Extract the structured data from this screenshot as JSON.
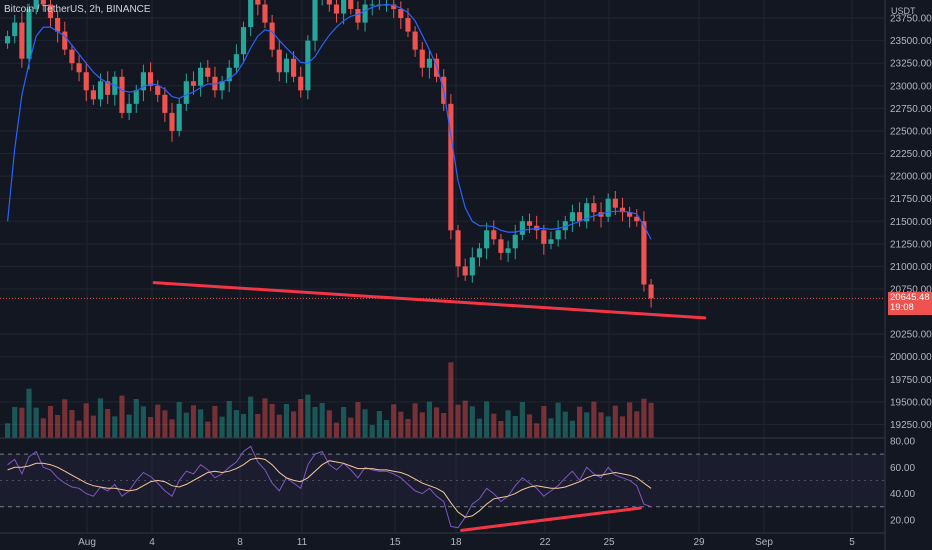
{
  "header": {
    "symbol": "Bitcoin / TetherUS",
    "interval": "2h",
    "exchange": "BINANCE"
  },
  "price_axis": {
    "unit": "USDT",
    "ticks": [
      "23750.00",
      "23500.00",
      "23250.00",
      "23000.00",
      "22750.00",
      "22500.00",
      "22250.00",
      "22000.00",
      "21750.00",
      "21500.00",
      "21250.00",
      "21000.00",
      "20750.00",
      "20250.00",
      "20000.00",
      "19750.00",
      "19500.00",
      "19250.00"
    ]
  },
  "last_price": {
    "value": "20645.48",
    "countdown": "19:08"
  },
  "rsi_axis": {
    "ticks": [
      "80.00",
      "60.00",
      "40.00",
      "20.00"
    ]
  },
  "time_axis": {
    "ticks": [
      "Aug",
      "4",
      "8",
      "11",
      "15",
      "18",
      "22",
      "25",
      "29",
      "Sep",
      "5"
    ]
  },
  "colors": {
    "up": "#26a69a",
    "down": "#ef5350",
    "ma": "#2962ff",
    "rsi": "#7e57c2",
    "rsi_ma": "#f4c89a",
    "trendline": "#f23645",
    "background": "#131722",
    "grid": "#1f2430"
  },
  "chart_data": [
    {
      "type": "candlestick",
      "title": "Bitcoin / TetherUS, 2h, BINANCE",
      "ylabel": "USDT",
      "ylim": [
        19100,
        23950
      ],
      "x_ticks": [
        "Aug",
        "4",
        "8",
        "11",
        "15",
        "18",
        "22",
        "25",
        "29",
        "Sep",
        "5"
      ],
      "closes": [
        23550,
        23700,
        23300,
        23850,
        24100,
        23900,
        23750,
        23600,
        23400,
        23250,
        23150,
        22950,
        22850,
        23050,
        22900,
        23100,
        22700,
        22800,
        22950,
        23150,
        23000,
        22900,
        22700,
        22500,
        22800,
        23050,
        23000,
        23200,
        23100,
        22950,
        23050,
        23200,
        23350,
        23650,
        24050,
        23900,
        23700,
        23400,
        23150,
        23300,
        23100,
        22950,
        23500,
        23950,
        24100,
        23900,
        23800,
        23950,
        23850,
        23700,
        23900,
        23900,
        23900,
        23900,
        23850,
        23750,
        23600,
        23400,
        23200,
        23300,
        23100,
        22800,
        21400,
        21000,
        20900,
        21100,
        21200,
        21400,
        21300,
        21150,
        21200,
        21350,
        21500,
        21450,
        21400,
        21250,
        21300,
        21400,
        21500,
        21600,
        21500,
        21700,
        21600,
        21550,
        21750,
        21650,
        21600,
        21550,
        21500,
        20800,
        20645
      ],
      "moving_average": [
        21500,
        22300,
        22900,
        23250,
        23550,
        23650,
        23650,
        23600,
        23550,
        23450,
        23350,
        23250,
        23150,
        23080,
        23030,
        23010,
        22950,
        22930,
        22940,
        22990,
        23020,
        23010,
        22960,
        22880,
        22860,
        22900,
        22930,
        22980,
        23020,
        23020,
        23040,
        23080,
        23140,
        23260,
        23420,
        23550,
        23620,
        23600,
        23500,
        23420,
        23340,
        23260,
        23250,
        23320,
        23450,
        23560,
        23650,
        23720,
        23770,
        23790,
        23830,
        23870,
        23890,
        23900,
        23890,
        23860,
        23810,
        23720,
        23560,
        23400,
        23220,
        22950,
        22450,
        21950,
        21650,
        21500,
        21450,
        21450,
        21440,
        21400,
        21380,
        21380,
        21400,
        21410,
        21420,
        21420,
        21410,
        21420,
        21440,
        21470,
        21500,
        21530,
        21560,
        21580,
        21600,
        21610,
        21610,
        21600,
        21580,
        21450,
        21300
      ],
      "last_price": 20645.48
    },
    {
      "type": "line",
      "title": "RSI",
      "ylim": [
        10,
        80
      ],
      "band": [
        30,
        70
      ],
      "rsi": [
        62,
        66,
        55,
        68,
        72,
        60,
        58,
        52,
        48,
        45,
        44,
        40,
        38,
        45,
        42,
        47,
        38,
        42,
        50,
        56,
        53,
        48,
        42,
        38,
        50,
        57,
        55,
        62,
        58,
        52,
        55,
        60,
        64,
        72,
        76,
        64,
        58,
        48,
        42,
        52,
        48,
        44,
        62,
        70,
        72,
        62,
        58,
        63,
        58,
        52,
        60,
        58,
        57,
        57,
        55,
        52,
        47,
        42,
        40,
        44,
        38,
        34,
        15,
        14,
        22,
        32,
        36,
        44,
        40,
        34,
        38,
        46,
        52,
        48,
        44,
        38,
        42,
        46,
        52,
        57,
        50,
        60,
        55,
        52,
        60,
        54,
        52,
        50,
        46,
        32,
        30
      ],
      "rsi_ma": [
        58,
        60,
        60,
        61,
        63,
        63,
        62,
        60,
        57,
        54,
        51,
        48,
        46,
        45,
        44,
        44,
        43,
        42,
        43,
        46,
        49,
        50,
        49,
        46,
        45,
        47,
        50,
        53,
        56,
        57,
        56,
        57,
        59,
        62,
        66,
        67,
        66,
        62,
        56,
        52,
        50,
        49,
        52,
        57,
        62,
        65,
        64,
        63,
        61,
        59,
        59,
        59,
        58,
        58,
        57,
        56,
        54,
        51,
        48,
        46,
        44,
        41,
        33,
        26,
        22,
        23,
        27,
        32,
        36,
        37,
        38,
        40,
        43,
        45,
        46,
        45,
        44,
        44,
        45,
        47,
        49,
        52,
        54,
        54,
        55,
        56,
        55,
        54,
        52,
        48,
        44
      ]
    }
  ],
  "annotations": {
    "price_trendline": {
      "start": [
        20,
        20820
      ],
      "end": [
        98,
        20430
      ]
    },
    "rsi_trendline": {
      "start": [
        63,
        12
      ],
      "end": [
        89,
        29
      ]
    }
  }
}
